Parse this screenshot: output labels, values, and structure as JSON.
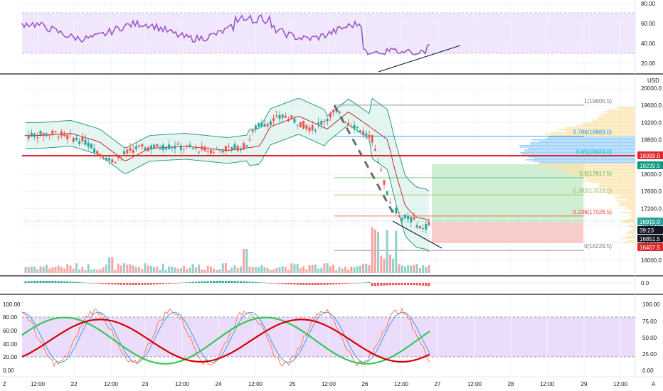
{
  "chart_data": {
    "type": "candlestick",
    "instrument_currency": "USD",
    "price_axis": {
      "ticks": [
        "20000.0",
        "19600.0",
        "19200.0",
        "18800.0",
        "18400.0",
        "18000.0",
        "17600.0",
        "17200.0",
        "16800.0",
        "16400.0",
        "16000.0"
      ],
      "min": 15850,
      "max": 20150
    },
    "price_tags": [
      {
        "text": "18399.0",
        "color": "#e0262d"
      },
      {
        "text": "18239.5",
        "color": "#089981"
      },
      {
        "text": "16915.0",
        "color": "#26a69a"
      },
      {
        "text": "39:23",
        "color": "#131722"
      },
      {
        "text": "16851.5",
        "color": "#131722"
      },
      {
        "text": "16407.5",
        "color": "#e0262d"
      }
    ],
    "rsi_axis": {
      "ticks": [
        "80.00",
        "60.00",
        "40.00",
        "20.00"
      ]
    },
    "macd_axis": {
      "ticks": [
        "0.0"
      ]
    },
    "stoch_axis": {
      "ticks_left": [
        "100.00",
        "80.00",
        "60.00",
        "40.00",
        "20.00",
        "0.00"
      ],
      "ticks_right": [
        "100.00",
        "75.00",
        "50.00",
        "25.00",
        "0.00"
      ]
    },
    "time_axis": {
      "labels": [
        "12:00",
        "22",
        "12:00",
        "23",
        "12:00",
        "24",
        "12:00",
        "25",
        "12:00",
        "26",
        "12:00",
        "27",
        "12:00",
        "28",
        "12:00",
        "29",
        "12:00"
      ],
      "left_letter": "Z",
      "right_letter": "A"
    },
    "fib_levels": [
      {
        "label": "1(19605.5)",
        "price": 19605.5,
        "color": "#787b86"
      },
      {
        "label": "0.786(18883.0)",
        "price": 18883.0,
        "color": "#2196f3"
      },
      {
        "label": "0.65(18424.0)",
        "price": 18424.0,
        "color": "#00bcd4"
      },
      {
        "label": "0.5(17917.5)",
        "price": 17917.5,
        "color": "#4caf50"
      },
      {
        "label": "0.382(17519.0)",
        "price": 17519.0,
        "color": "#8bc34a"
      },
      {
        "label": "0.236(17026.5)",
        "price": 17026.5,
        "color": "#f44336"
      },
      {
        "label": "0(16229.5)",
        "price": 16229.5,
        "color": "#787b86"
      }
    ],
    "horizontal_line": {
      "price": 18399.0,
      "color": "#e0262d"
    },
    "position": {
      "entry": 16915.0,
      "target": 18239.5,
      "stop": 16407.5
    },
    "rsi_band": [
      30,
      70
    ],
    "stoch_band": [
      20,
      80
    ],
    "colors": {
      "up": "#26a69a",
      "down": "#ef5350",
      "rsi": "#9c58c5",
      "bb": "#2e9b7f",
      "bb_fill": "#d8f1ec",
      "band": "#e8d9fc",
      "stoch_k": "#e53935",
      "stoch_d": "#2196f3",
      "stoch_green": "#34c759",
      "stoch_red": "#d50000"
    }
  }
}
